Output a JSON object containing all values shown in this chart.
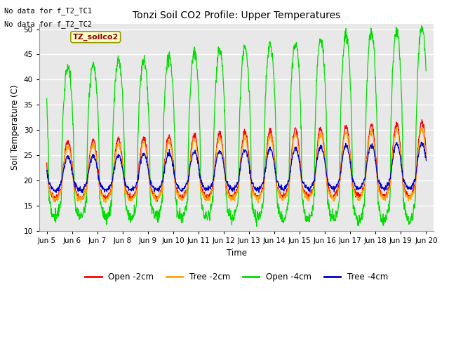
{
  "title": "Tonzi Soil CO2 Profile: Upper Temperatures",
  "ylabel": "Soil Temperature (C)",
  "xlabel": "Time",
  "annotation1": "No data for f_T2_TC1",
  "annotation2": "No data for f_T2_TC2",
  "legend_label": "TZ_soilco2",
  "ylim": [
    10,
    51
  ],
  "yticks": [
    10,
    15,
    20,
    25,
    30,
    35,
    40,
    45,
    50
  ],
  "color_open2": "#ff0000",
  "color_tree2": "#ffa500",
  "color_open4": "#00dd00",
  "color_tree4": "#0000cc",
  "legend_labels": [
    "Open -2cm",
    "Tree -2cm",
    "Open -4cm",
    "Tree -4cm"
  ],
  "bg_color_plot": "#e8e8e8",
  "bg_color_alt": "#d8d8d8",
  "fig_bg": "#ffffff",
  "n_days": 15,
  "start_day": 5,
  "spd": 96
}
